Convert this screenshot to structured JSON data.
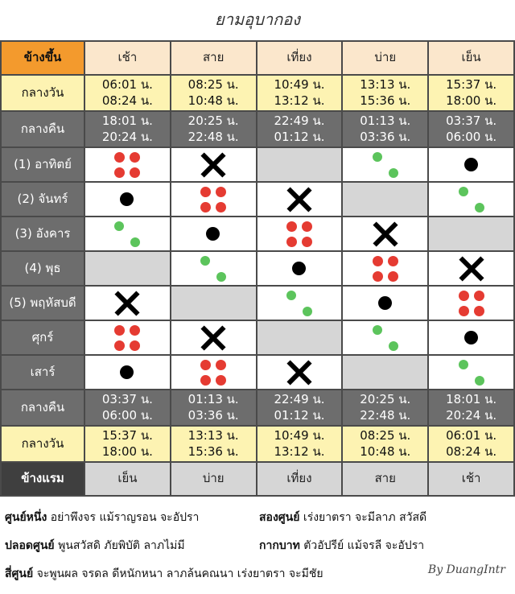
{
  "title": "ยามอุบากอง",
  "header": {
    "corner": "ข้างขึ้น",
    "periods": [
      "เช้า",
      "สาย",
      "เที่ยง",
      "บ่าย",
      "เย็น"
    ]
  },
  "top_day": {
    "label": "กลางวัน",
    "times": [
      [
        "06:01 น.",
        "08:24 น."
      ],
      [
        "08:25 น.",
        "10:48 น."
      ],
      [
        "10:49 น.",
        "13:12 น."
      ],
      [
        "13:13 น.",
        "15:36 น."
      ],
      [
        "15:37 น.",
        "18:00 น."
      ]
    ]
  },
  "top_night": {
    "label": "กลางคืน",
    "times": [
      [
        "18:01 น.",
        "20:24 น."
      ],
      [
        "20:25 น.",
        "22:48 น."
      ],
      [
        "22:49 น.",
        "01:12 น."
      ],
      [
        "01:13 น.",
        "03:36 น."
      ],
      [
        "03:37 น.",
        "06:00 น."
      ]
    ]
  },
  "days": [
    {
      "label": "(1) อาทิตย์",
      "cells": [
        "four",
        "x",
        "empty",
        "two",
        "one"
      ]
    },
    {
      "label": "(2) จันทร์",
      "cells": [
        "one",
        "four",
        "x",
        "empty",
        "two"
      ]
    },
    {
      "label": "(3) อังคาร",
      "cells": [
        "two",
        "one",
        "four",
        "x",
        "empty"
      ]
    },
    {
      "label": "(4) พุธ",
      "cells": [
        "empty",
        "two",
        "one",
        "four",
        "x"
      ]
    },
    {
      "label": "(5) พฤหัสบดี",
      "cells": [
        "x",
        "empty",
        "two",
        "one",
        "four"
      ]
    },
    {
      "label": "ศุกร์",
      "cells": [
        "four",
        "x",
        "empty",
        "two",
        "one"
      ]
    },
    {
      "label": "เสาร์",
      "cells": [
        "one",
        "four",
        "x",
        "empty",
        "two"
      ]
    }
  ],
  "bottom_night": {
    "label": "กลางคืน",
    "times": [
      [
        "03:37 น.",
        "06:00 น."
      ],
      [
        "01:13 น.",
        "03:36 น."
      ],
      [
        "22:49 น.",
        "01:12 น."
      ],
      [
        "20:25 น.",
        "22:48 น."
      ],
      [
        "18:01 น.",
        "20:24 น."
      ]
    ]
  },
  "bottom_day": {
    "label": "กลางวัน",
    "times": [
      [
        "15:37 น.",
        "18:00 น."
      ],
      [
        "13:13 น.",
        "15:36 น."
      ],
      [
        "10:49 น.",
        "13:12 น."
      ],
      [
        "08:25 น.",
        "10:48 น."
      ],
      [
        "06:01 น.",
        "08:24 น."
      ]
    ]
  },
  "footer": {
    "corner": "ข้างแรม",
    "periods": [
      "เย็น",
      "บ่าย",
      "เที่ยง",
      "สาย",
      "เช้า"
    ]
  },
  "legend": {
    "line1_left_term": "ศูนย์หนึ่ง",
    "line1_left_desc": " อย่าพึงจร แม้ราญรอน จะอัปรา",
    "line1_right_term": "สองศูนย์",
    "line1_right_desc": " เร่งยาตรา จะมีลาภ สวัสดี",
    "line2_left_term": "ปลอดศูนย์",
    "line2_left_desc": " พูนสวัสดิ ภัยพิบัติ ลาภไม่มี",
    "line2_right_term": "กากบาท",
    "line2_right_desc": " ตัวอัปรีย์ แม้จรลี จะอัปรา",
    "line3_term": "สี่ศูนย์",
    "line3_desc": " จะพูนผล จรดล ดีหนักหนา   ลาภล้นคณนา เร่งยาตรา จะมีชัย"
  },
  "signature": "By DuangIntr",
  "colors": {
    "red_dot": "#e53b32",
    "green_dot": "#5cc45c",
    "header_orange": "#f39a2d",
    "day_yellow": "#fdf3b2",
    "night_gray": "#6d6d6d"
  }
}
